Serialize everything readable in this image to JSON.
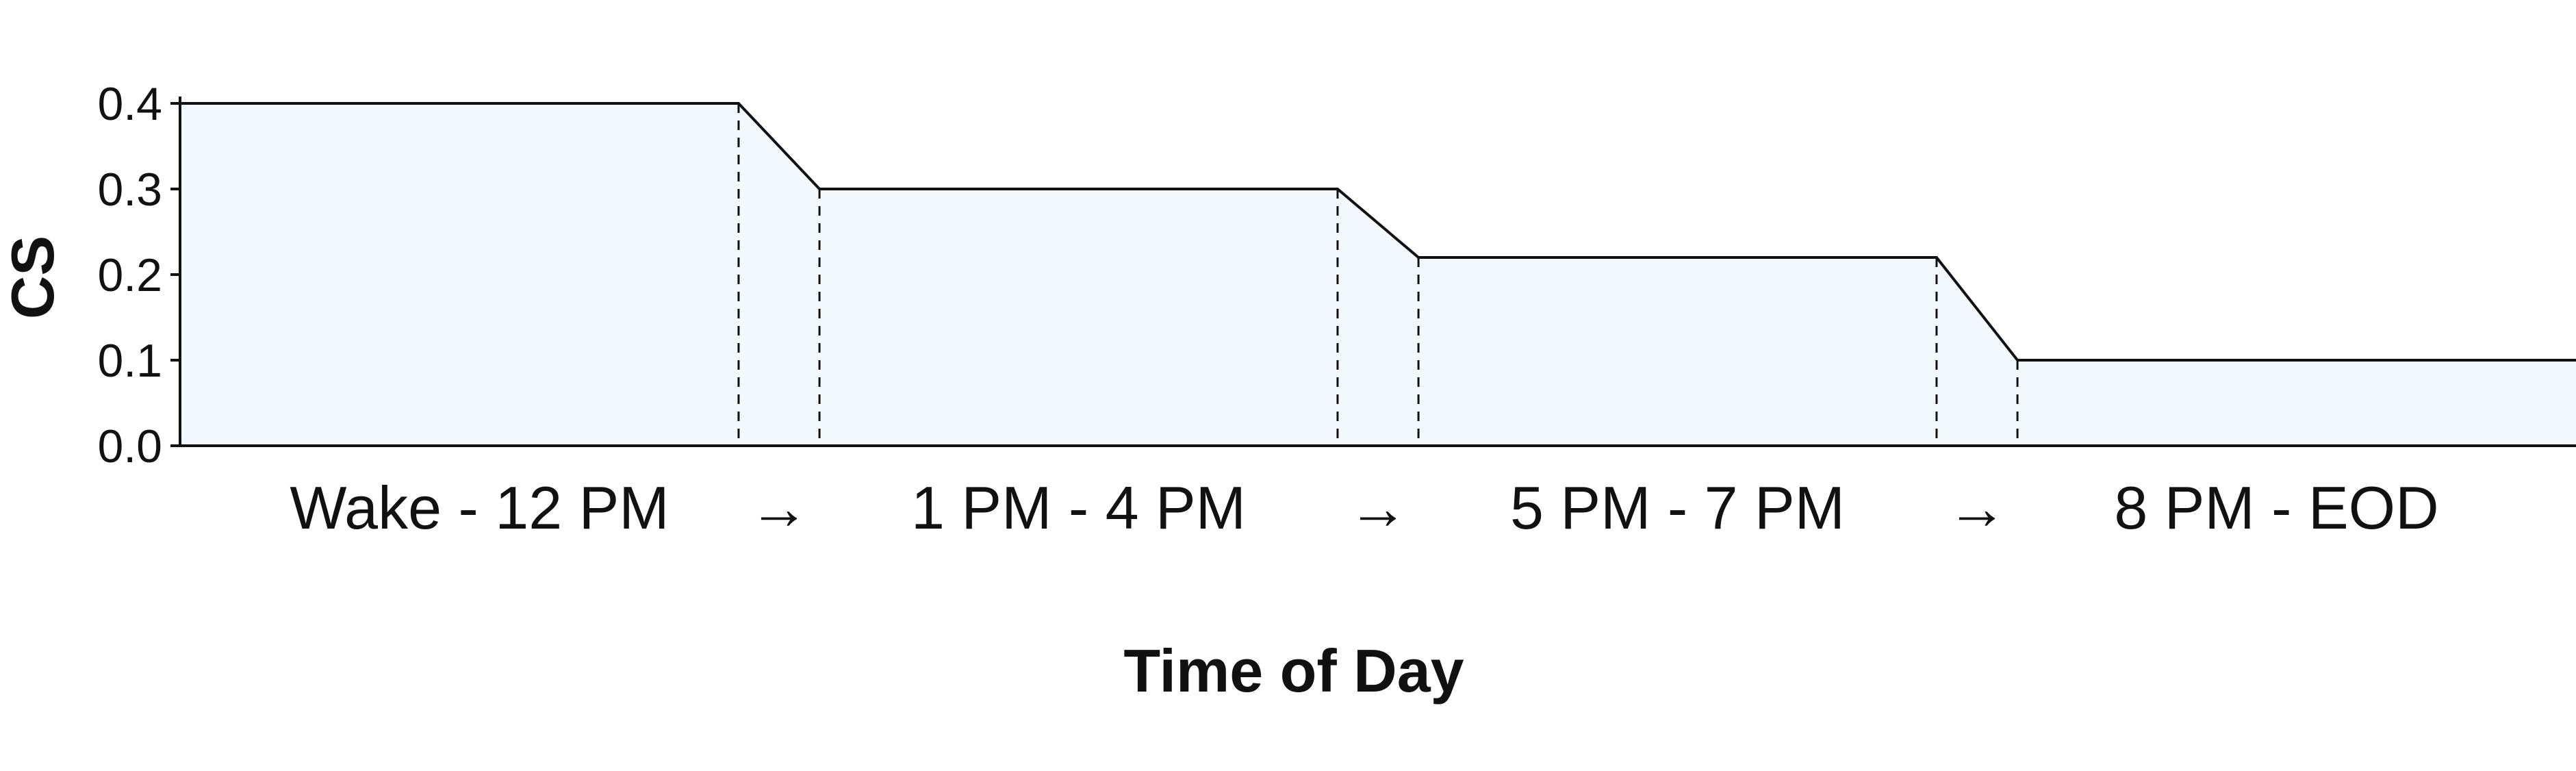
{
  "chart_data": {
    "type": "area",
    "title": "",
    "xlabel": "Time of Day",
    "ylabel": "CS",
    "ylim": [
      0,
      0.4
    ],
    "yticks": [
      "0.0",
      "0.1",
      "0.2",
      "0.3",
      "0.4"
    ],
    "categories": [
      "Wake - 12 PM",
      "1 PM - 4 PM",
      "5 PM - 7 PM",
      "8 PM - EOD"
    ],
    "values": [
      0.4,
      0.3,
      0.22,
      0.1
    ],
    "transition_label": "→",
    "grid": false,
    "colors": {
      "fill": "#f2f8fb",
      "line": "#111111"
    }
  }
}
